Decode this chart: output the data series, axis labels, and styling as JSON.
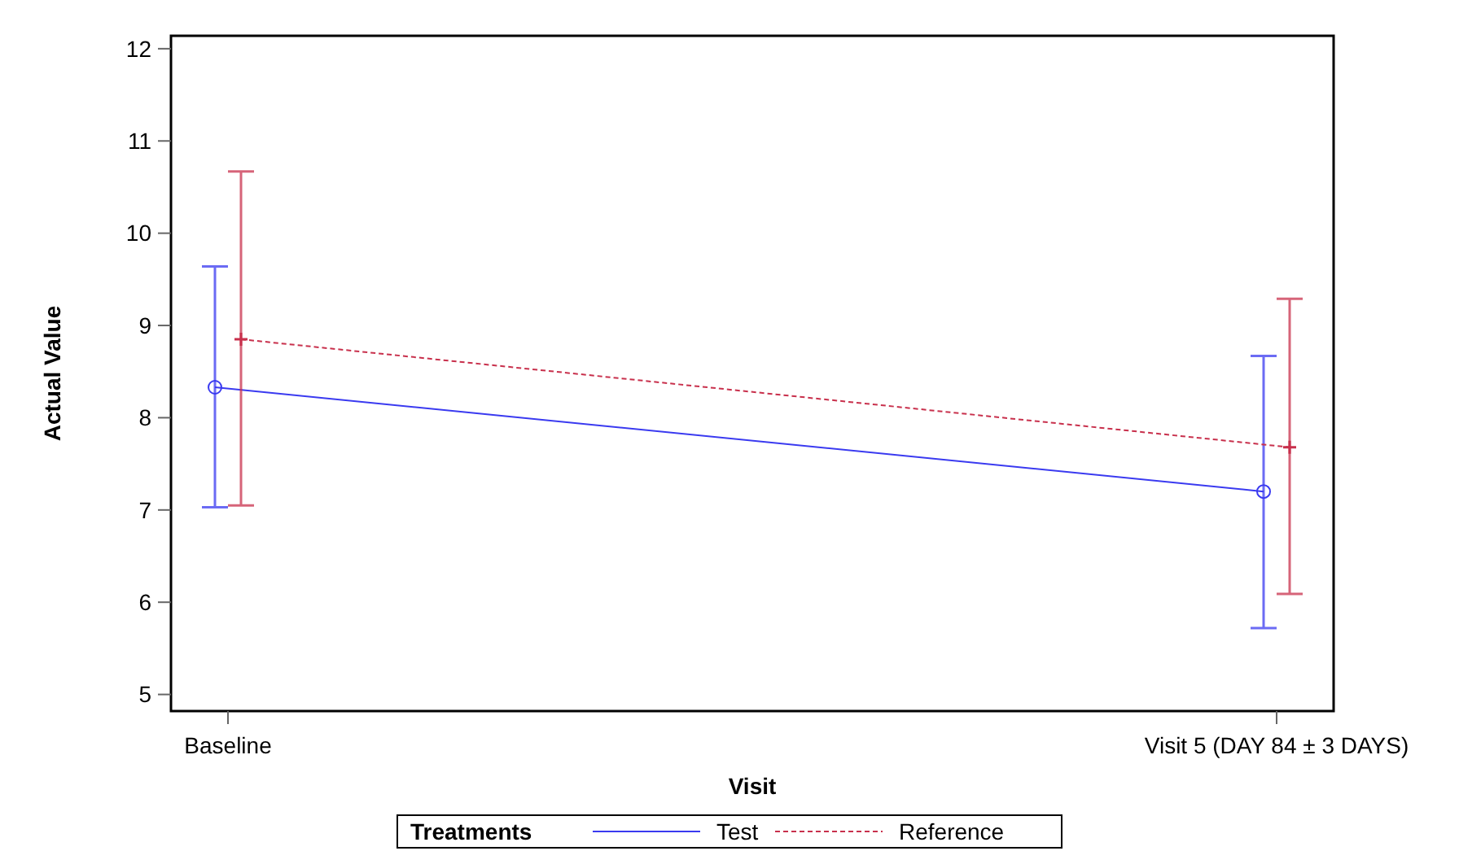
{
  "chart_data": {
    "type": "line",
    "xlabel": "Visit",
    "ylabel": "Actual Value",
    "legend_title": "Treatments",
    "categories": [
      "Baseline",
      "Visit 5 (DAY 84 ± 3 DAYS)"
    ],
    "series": [
      {
        "name": "Test",
        "color": "#3a3af0",
        "values": [
          8.33,
          7.2
        ],
        "errors": [
          [
            7.03,
            9.64
          ],
          [
            5.72,
            8.67
          ]
        ],
        "marker": "circle",
        "line_style": "solid"
      },
      {
        "name": "Reference",
        "color": "#c8304c",
        "values": [
          8.85,
          7.68
        ],
        "errors": [
          [
            7.05,
            10.67
          ],
          [
            6.09,
            9.29
          ]
        ],
        "marker": "cross",
        "line_style": "dashed"
      }
    ],
    "ylim": [
      4.82,
      12.14
    ],
    "yticks": [
      5,
      6,
      7,
      8,
      9,
      10,
      11,
      12
    ],
    "grid": false,
    "legend": "bottom"
  }
}
